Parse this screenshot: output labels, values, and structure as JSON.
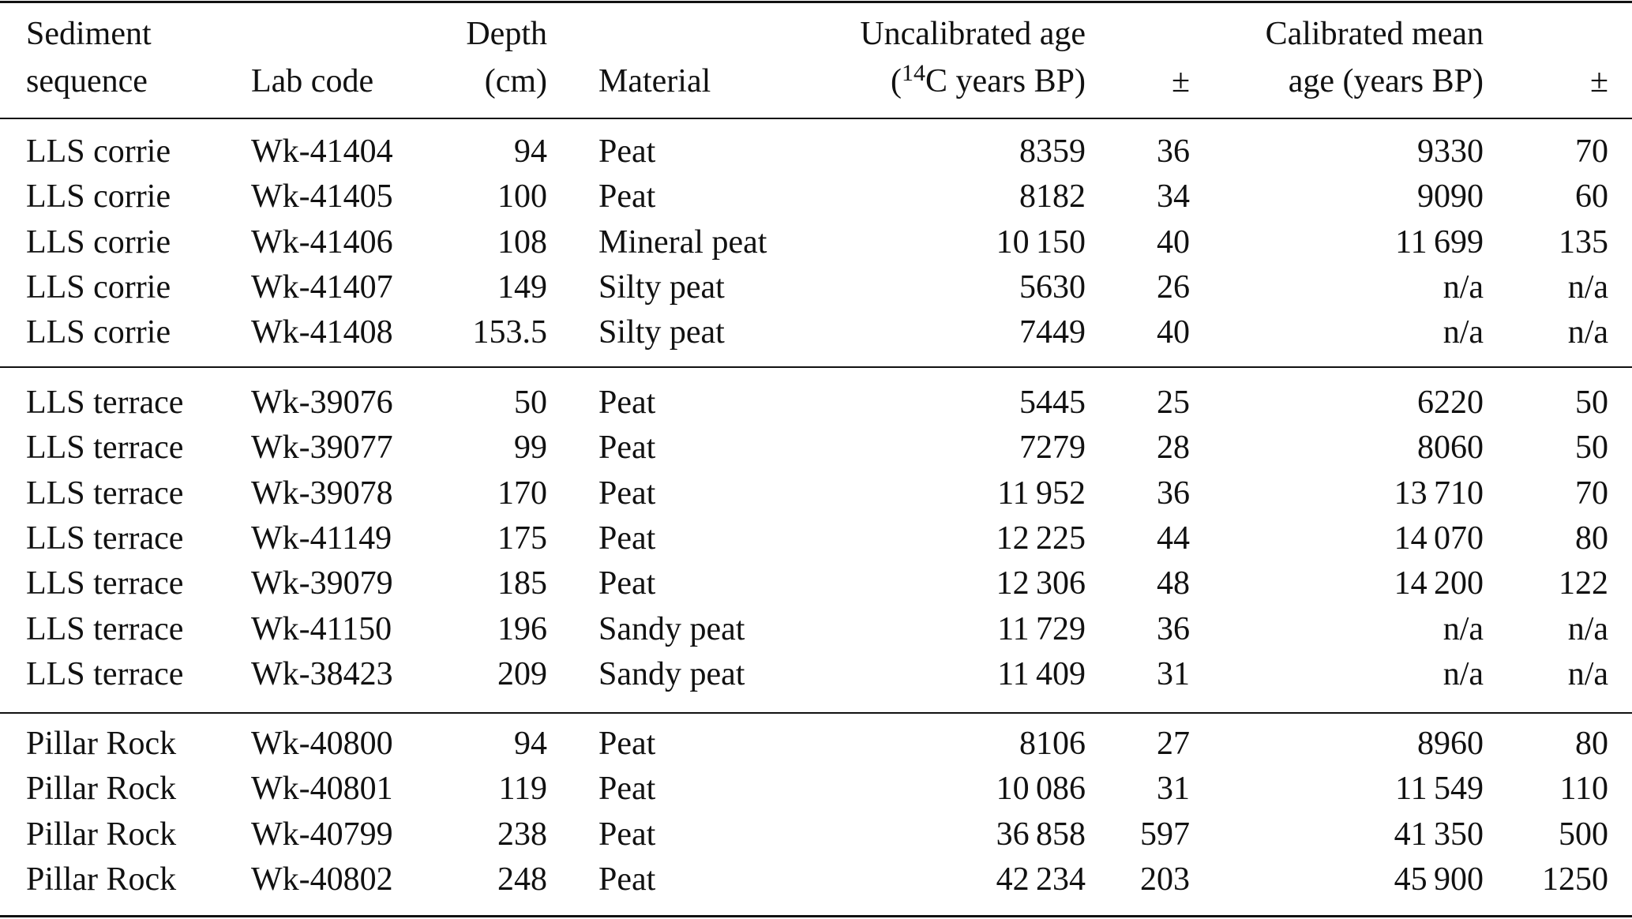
{
  "header": {
    "sediment_sequence": [
      "Sediment",
      "sequence"
    ],
    "lab_code": "Lab code",
    "depth": [
      "Depth",
      "(cm)"
    ],
    "material": "Material",
    "uncalibrated_age": {
      "line1": "Uncalibrated age",
      "open": "(",
      "superscript": "14",
      "rest": "C years BP)"
    },
    "uncalibrated_error": "±",
    "calibrated_age": [
      "Calibrated mean",
      "age (years BP)"
    ],
    "calibrated_error": "±"
  },
  "table": {
    "groups": [
      {
        "rows": [
          [
            "LLS corrie",
            "Wk-41404",
            "94",
            "Peat",
            "8359",
            "36",
            "9330",
            "70"
          ],
          [
            "LLS corrie",
            "Wk-41405",
            "100",
            "Peat",
            "8182",
            "34",
            "9090",
            "60"
          ],
          [
            "LLS corrie",
            "Wk-41406",
            "108",
            "Mineral peat",
            "10 150",
            "40",
            "11 699",
            "135"
          ],
          [
            "LLS corrie",
            "Wk-41407",
            "149",
            "Silty peat",
            "5630",
            "26",
            "n/a",
            "n/a"
          ],
          [
            "LLS corrie",
            "Wk-41408",
            "153.5",
            "Silty peat",
            "7449",
            "40",
            "n/a",
            "n/a"
          ]
        ]
      },
      {
        "rows": [
          [
            "LLS terrace",
            "Wk-39076",
            "50",
            "Peat",
            "5445",
            "25",
            "6220",
            "50"
          ],
          [
            "LLS terrace",
            "Wk-39077",
            "99",
            "Peat",
            "7279",
            "28",
            "8060",
            "50"
          ],
          [
            "LLS terrace",
            "Wk-39078",
            "170",
            "Peat",
            "11 952",
            "36",
            "13 710",
            "70"
          ],
          [
            "LLS terrace",
            "Wk-41149",
            "175",
            "Peat",
            "12 225",
            "44",
            "14 070",
            "80"
          ],
          [
            "LLS terrace",
            "Wk-39079",
            "185",
            "Peat",
            "12 306",
            "48",
            "14 200",
            "122"
          ],
          [
            "LLS terrace",
            "Wk-41150",
            "196",
            "Sandy peat",
            "11 729",
            "36",
            "n/a",
            "n/a"
          ],
          [
            "LLS terrace",
            "Wk-38423",
            "209",
            "Sandy peat",
            "11 409",
            "31",
            "n/a",
            "n/a"
          ]
        ]
      },
      {
        "rows": [
          [
            "Pillar Rock",
            "Wk-40800",
            "94",
            "Peat",
            "8106",
            "27",
            "8960",
            "80"
          ],
          [
            "Pillar Rock",
            "Wk-40801",
            "119",
            "Peat",
            "10 086",
            "31",
            "11 549",
            "110"
          ],
          [
            "Pillar Rock",
            "Wk-40799",
            "238",
            "Peat",
            "36 858",
            "597",
            "41 350",
            "500"
          ],
          [
            "Pillar Rock",
            "Wk-40802",
            "248",
            "Peat",
            "42 234",
            "203",
            "45 900",
            "1250"
          ]
        ]
      }
    ]
  }
}
